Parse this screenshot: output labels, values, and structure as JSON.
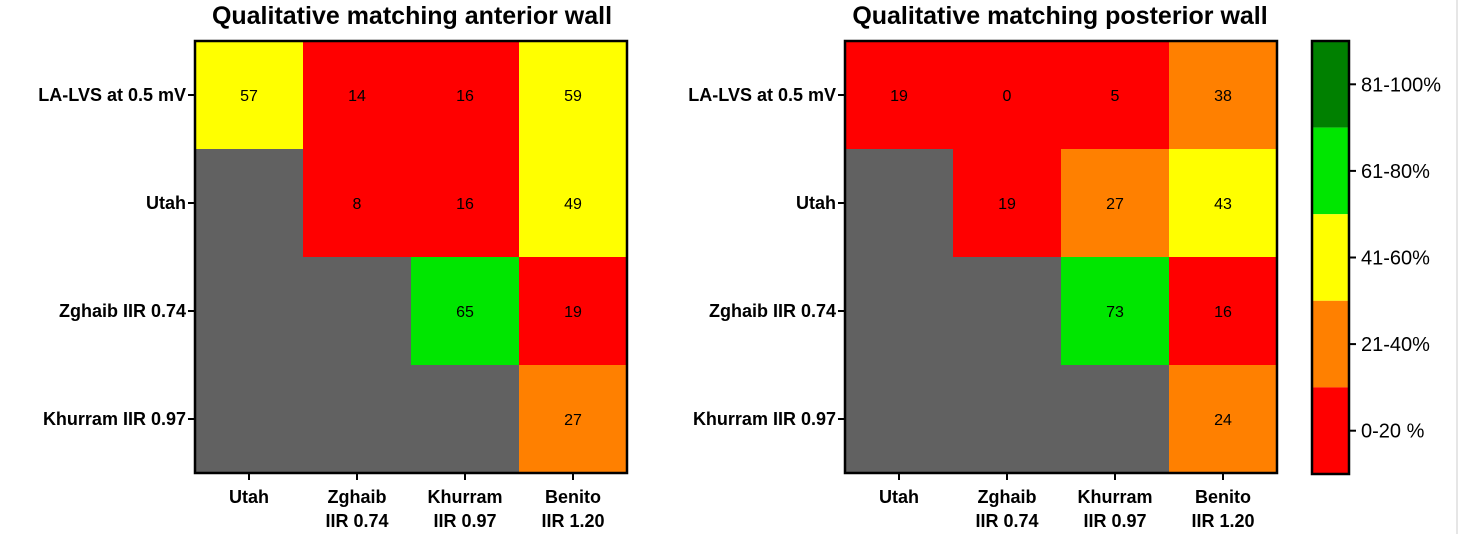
{
  "colors": {
    "na": "#616161",
    "0-20": "#ff0000",
    "21-40": "#ff8000",
    "41-60": "#ffff00",
    "61-80": "#00e600",
    "81-100": "#008000"
  },
  "legend": {
    "bins": [
      {
        "label": "81-100%",
        "color": "#008000"
      },
      {
        "label": "61-80%",
        "color": "#00e600"
      },
      {
        "label": "41-60%",
        "color": "#ffff00"
      },
      {
        "label": "21-40%",
        "color": "#ff8000"
      },
      {
        "label": "0-20 %",
        "color": "#ff0000"
      }
    ]
  },
  "chart_data": [
    {
      "type": "heatmap",
      "title": "Qualitative matching anterior wall",
      "rows": [
        "LA-LVS at 0.5 mV",
        "Utah",
        "Zghaib IIR 0.74",
        "Khurram IIR 0.97"
      ],
      "columns": [
        [
          "Utah"
        ],
        [
          "Zghaib",
          "IIR 0.74"
        ],
        [
          "Khurram",
          "IIR 0.97"
        ],
        [
          "Benito",
          "IIR 1.20"
        ]
      ],
      "values": [
        [
          57,
          14,
          16,
          59
        ],
        [
          null,
          8,
          16,
          49
        ],
        [
          null,
          null,
          65,
          19
        ],
        [
          null,
          null,
          null,
          27
        ]
      ]
    },
    {
      "type": "heatmap",
      "title": "Qualitative matching posterior wall",
      "rows": [
        "LA-LVS at 0.5 mV",
        "Utah",
        "Zghaib IIR 0.74",
        "Khurram IIR 0.97"
      ],
      "columns": [
        [
          "Utah"
        ],
        [
          "Zghaib",
          "IIR 0.74"
        ],
        [
          "Khurram",
          "IIR 0.97"
        ],
        [
          "Benito",
          "IIR 1.20"
        ]
      ],
      "values": [
        [
          19,
          0,
          5,
          38
        ],
        [
          null,
          19,
          27,
          43
        ],
        [
          null,
          null,
          73,
          16
        ],
        [
          null,
          null,
          null,
          24
        ]
      ]
    }
  ]
}
